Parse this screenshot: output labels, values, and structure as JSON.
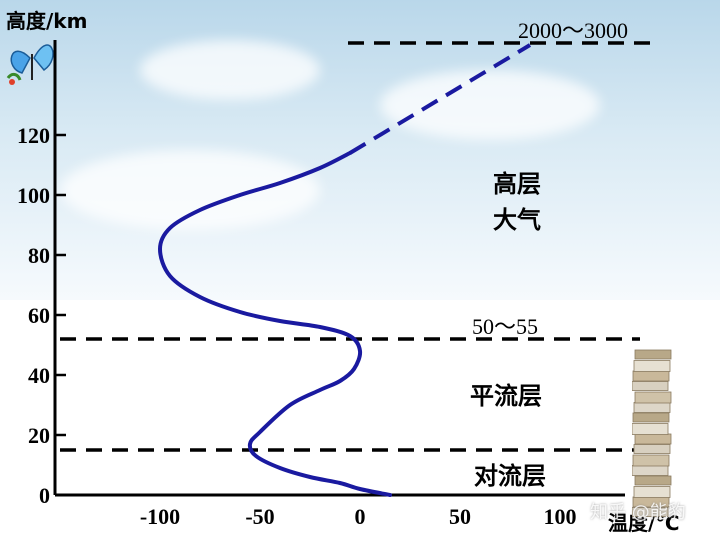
{
  "title_axis_y": "高度/km",
  "title_axis_x": "温度/℃",
  "y_ticks": [
    "0",
    "20",
    "40",
    "60",
    "80",
    "100",
    "120"
  ],
  "x_ticks": [
    "-100",
    "-50",
    "0",
    "50",
    "100"
  ],
  "boundaries": {
    "tropopause_label": "",
    "stratopause_label": "50～55",
    "top_label": "2000～3000"
  },
  "layers": {
    "troposphere": "对流层",
    "stratosphere": "平流层",
    "upper_line1": "高层",
    "upper_line2": "大气"
  },
  "watermark": "知乎 @能豹",
  "colors": {
    "curve": "#1a1aa0",
    "axis": "#000000"
  },
  "chart_data": {
    "type": "line",
    "xlabel": "温度/℃",
    "ylabel": "高度/km",
    "xlim": [
      -150,
      150
    ],
    "ylim": [
      0,
      140
    ],
    "x": [
      15,
      0,
      -10,
      -25,
      -40,
      -52,
      -55,
      -50,
      -35,
      -20,
      -10,
      -3,
      0,
      -5,
      -20,
      -40,
      -60,
      -80,
      -95,
      -100,
      -95,
      -80,
      -60,
      -40,
      -20,
      -5
    ],
    "y": [
      0,
      2,
      4,
      6,
      9,
      13,
      17,
      21,
      30,
      35,
      38,
      42,
      48,
      53,
      56,
      58,
      61,
      66,
      73,
      82,
      89,
      95,
      100,
      104,
      109,
      114
    ],
    "dashed_extension": {
      "x": [
        -5,
        85
      ],
      "y": [
        114,
        150
      ]
    },
    "boundary_altitudes_km": [
      15,
      52
    ]
  }
}
